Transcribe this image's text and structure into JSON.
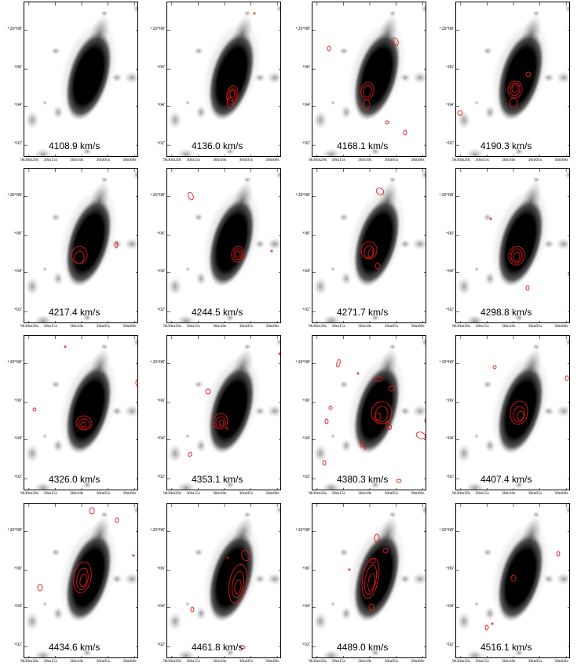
{
  "panels": [
    {
      "velocity": "4108.9 km/s"
    },
    {
      "velocity": "4136.0 km/s"
    },
    {
      "velocity": "4168.1 km/s"
    },
    {
      "velocity": "4190.3 km/s"
    },
    {
      "velocity": "4217.4 km/s"
    },
    {
      "velocity": "4244.5 km/s"
    },
    {
      "velocity": "4271.7 km/s"
    },
    {
      "velocity": "4298.8 km/s"
    },
    {
      "velocity": "4326.0 km/s"
    },
    {
      "velocity": "4353.1 km/s"
    },
    {
      "velocity": "4380.3 km/s"
    },
    {
      "velocity": "4407.4 km/s"
    },
    {
      "velocity": "4434.6 km/s"
    },
    {
      "velocity": "4461.8 km/s"
    },
    {
      "velocity": "4489.0 km/s"
    },
    {
      "velocity": "4516.1 km/s"
    }
  ],
  "y_ticks": [
    "+20°08'",
    "+06'",
    "+04'",
    "+02'"
  ],
  "x_ticks": [
    "9h30m20s",
    "30m15s",
    "30m10s",
    "30m05s",
    "30m00s"
  ],
  "colors": {
    "contour": "#e01818",
    "galaxy": "#000000",
    "noise": "#8a8a8a",
    "frame": "#000000"
  }
}
